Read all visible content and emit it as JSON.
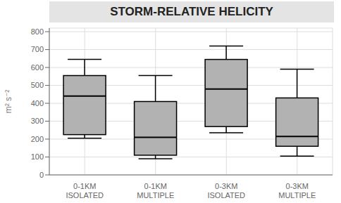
{
  "chart_data": {
    "type": "box",
    "title": "STORM-RELATIVE HELICITY",
    "ylabel": "m² s⁻²",
    "categories": [
      "0-1KM\nISOLATED",
      "0-1KM\nMULTIPLE",
      "0-3KM\nISOLATED",
      "0-3KM\nMULTIPLE"
    ],
    "boxes": [
      {
        "whisker_low": 205,
        "q1": 225,
        "median": 440,
        "q3": 555,
        "whisker_high": 645
      },
      {
        "whisker_low": 90,
        "q1": 110,
        "median": 210,
        "q3": 410,
        "whisker_high": 555
      },
      {
        "whisker_low": 235,
        "q1": 270,
        "median": 480,
        "q3": 645,
        "whisker_high": 720
      },
      {
        "whisker_low": 105,
        "q1": 160,
        "median": 215,
        "q3": 430,
        "whisker_high": 590
      }
    ],
    "color": "#b2b2b2",
    "ylim": [
      0,
      820
    ],
    "yticks": [
      0,
      100,
      200,
      300,
      400,
      500,
      600,
      700,
      800
    ],
    "grid": true
  }
}
